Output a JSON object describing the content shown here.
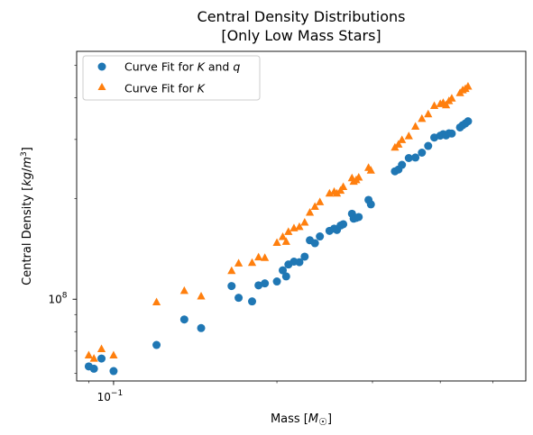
{
  "chart_data": {
    "type": "scatter",
    "title": "Central Density Distributions",
    "subtitle": "[Only Low Mass Stars]",
    "xlabel": "Mass [M☉]",
    "ylabel": "Central Density [kg/m³]",
    "x_scale": "log",
    "y_scale": "log",
    "xlim": [
      0.0855,
      0.575
    ],
    "ylim": [
      57000000,
      550000000
    ],
    "x_tick_labels": [
      {
        "value": 0.1,
        "label": "10^-1"
      }
    ],
    "y_tick_labels": [
      {
        "value": 100000000,
        "label": "10^8"
      }
    ],
    "grid": false,
    "legend_position": "top-left",
    "series": [
      {
        "name": "Curve Fit for K and q",
        "marker": "circle",
        "color": "#1f77b4",
        "points": [
          {
            "x": 0.09,
            "y": 63000000
          },
          {
            "x": 0.092,
            "y": 62000000
          },
          {
            "x": 0.095,
            "y": 66500000
          },
          {
            "x": 0.1,
            "y": 61000000
          },
          {
            "x": 0.12,
            "y": 73000000
          },
          {
            "x": 0.135,
            "y": 87000000
          },
          {
            "x": 0.145,
            "y": 82000000
          },
          {
            "x": 0.165,
            "y": 109500000
          },
          {
            "x": 0.17,
            "y": 101000000
          },
          {
            "x": 0.18,
            "y": 98500000
          },
          {
            "x": 0.185,
            "y": 110000000
          },
          {
            "x": 0.19,
            "y": 111500000
          },
          {
            "x": 0.2,
            "y": 113000000
          },
          {
            "x": 0.205,
            "y": 122000000
          },
          {
            "x": 0.208,
            "y": 117000000
          },
          {
            "x": 0.21,
            "y": 127000000
          },
          {
            "x": 0.215,
            "y": 129500000
          },
          {
            "x": 0.22,
            "y": 129000000
          },
          {
            "x": 0.225,
            "y": 134000000
          },
          {
            "x": 0.23,
            "y": 150000000
          },
          {
            "x": 0.235,
            "y": 147000000
          },
          {
            "x": 0.24,
            "y": 154000000
          },
          {
            "x": 0.25,
            "y": 160000000
          },
          {
            "x": 0.255,
            "y": 162500000
          },
          {
            "x": 0.258,
            "y": 161000000
          },
          {
            "x": 0.262,
            "y": 166000000
          },
          {
            "x": 0.265,
            "y": 167500000
          },
          {
            "x": 0.275,
            "y": 180000000
          },
          {
            "x": 0.277,
            "y": 174000000
          },
          {
            "x": 0.28,
            "y": 175000000
          },
          {
            "x": 0.283,
            "y": 176000000
          },
          {
            "x": 0.295,
            "y": 198000000
          },
          {
            "x": 0.298,
            "y": 192000000
          },
          {
            "x": 0.33,
            "y": 241000000
          },
          {
            "x": 0.335,
            "y": 244000000
          },
          {
            "x": 0.34,
            "y": 252000000
          },
          {
            "x": 0.35,
            "y": 264000000
          },
          {
            "x": 0.36,
            "y": 265000000
          },
          {
            "x": 0.37,
            "y": 274000000
          },
          {
            "x": 0.38,
            "y": 287000000
          },
          {
            "x": 0.39,
            "y": 304000000
          },
          {
            "x": 0.4,
            "y": 308000000
          },
          {
            "x": 0.405,
            "y": 311000000
          },
          {
            "x": 0.41,
            "y": 308500000
          },
          {
            "x": 0.415,
            "y": 313000000
          },
          {
            "x": 0.42,
            "y": 312500000
          },
          {
            "x": 0.435,
            "y": 326000000
          },
          {
            "x": 0.44,
            "y": 331000000
          },
          {
            "x": 0.445,
            "y": 335000000
          },
          {
            "x": 0.45,
            "y": 340000000
          }
        ]
      },
      {
        "name": "Curve Fit for K",
        "marker": "triangle",
        "color": "#ff7f0e",
        "points": [
          {
            "x": 0.09,
            "y": 68000000
          },
          {
            "x": 0.092,
            "y": 66500000
          },
          {
            "x": 0.095,
            "y": 71000000
          },
          {
            "x": 0.1,
            "y": 68000000
          },
          {
            "x": 0.12,
            "y": 98000000
          },
          {
            "x": 0.135,
            "y": 106000000
          },
          {
            "x": 0.145,
            "y": 102000000
          },
          {
            "x": 0.165,
            "y": 121500000
          },
          {
            "x": 0.17,
            "y": 128000000
          },
          {
            "x": 0.18,
            "y": 128500000
          },
          {
            "x": 0.185,
            "y": 133500000
          },
          {
            "x": 0.19,
            "y": 133000000
          },
          {
            "x": 0.2,
            "y": 147500000
          },
          {
            "x": 0.205,
            "y": 153500000
          },
          {
            "x": 0.208,
            "y": 148500000
          },
          {
            "x": 0.21,
            "y": 159000000
          },
          {
            "x": 0.215,
            "y": 163000000
          },
          {
            "x": 0.22,
            "y": 164500000
          },
          {
            "x": 0.225,
            "y": 169500000
          },
          {
            "x": 0.23,
            "y": 181500000
          },
          {
            "x": 0.235,
            "y": 189000000
          },
          {
            "x": 0.24,
            "y": 195000000
          },
          {
            "x": 0.25,
            "y": 207000000
          },
          {
            "x": 0.255,
            "y": 209500000
          },
          {
            "x": 0.258,
            "y": 207000000
          },
          {
            "x": 0.262,
            "y": 211000000
          },
          {
            "x": 0.265,
            "y": 216500000
          },
          {
            "x": 0.275,
            "y": 230000000
          },
          {
            "x": 0.277,
            "y": 224500000
          },
          {
            "x": 0.28,
            "y": 227000000
          },
          {
            "x": 0.283,
            "y": 231000000
          },
          {
            "x": 0.295,
            "y": 247000000
          },
          {
            "x": 0.298,
            "y": 242500000
          },
          {
            "x": 0.33,
            "y": 284000000
          },
          {
            "x": 0.335,
            "y": 290000000
          },
          {
            "x": 0.34,
            "y": 299000000
          },
          {
            "x": 0.35,
            "y": 307000000
          },
          {
            "x": 0.36,
            "y": 328000000
          },
          {
            "x": 0.37,
            "y": 346000000
          },
          {
            "x": 0.38,
            "y": 357000000
          },
          {
            "x": 0.39,
            "y": 378000000
          },
          {
            "x": 0.4,
            "y": 383000000
          },
          {
            "x": 0.405,
            "y": 386000000
          },
          {
            "x": 0.41,
            "y": 380000000
          },
          {
            "x": 0.415,
            "y": 391000000
          },
          {
            "x": 0.42,
            "y": 398000000
          },
          {
            "x": 0.435,
            "y": 413000000
          },
          {
            "x": 0.44,
            "y": 421000000
          },
          {
            "x": 0.445,
            "y": 425000000
          },
          {
            "x": 0.45,
            "y": 432000000
          }
        ]
      }
    ]
  }
}
